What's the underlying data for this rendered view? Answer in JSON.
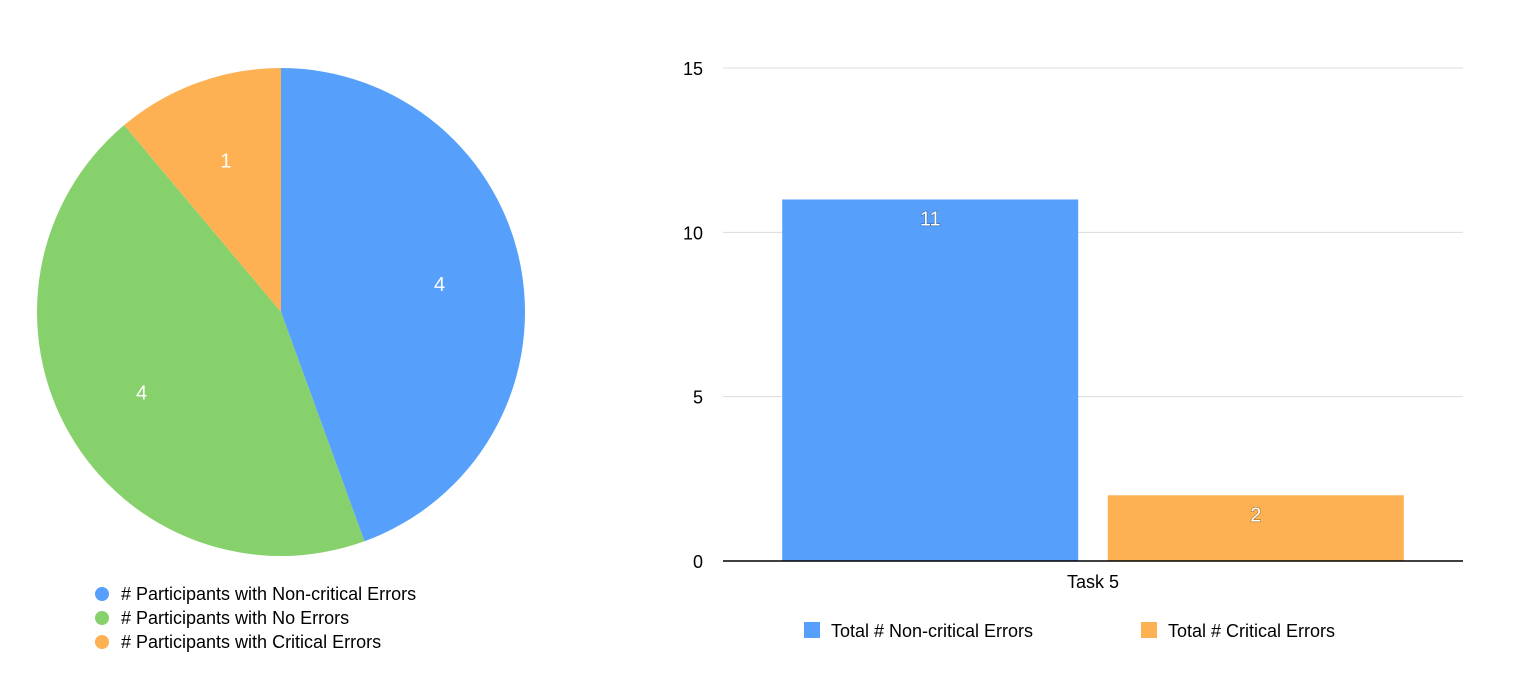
{
  "chart_data": [
    {
      "type": "pie",
      "title": "",
      "labels": [
        "# Participants with Non-critical Errors",
        "# Participants with No Errors",
        "# Participants with Critical Errors"
      ],
      "values": [
        4,
        4,
        1
      ],
      "data_labels": [
        "4",
        "4",
        "1"
      ],
      "colors": [
        "#56A0FB",
        "#86D16C",
        "#FDB153"
      ],
      "legend_position": "bottom-left"
    },
    {
      "type": "bar",
      "title": "",
      "categories": [
        "Task 5"
      ],
      "series": [
        {
          "name": "Total # Non-critical Errors",
          "values": [
            11
          ],
          "color": "#56A0FB",
          "data_label": "11"
        },
        {
          "name": "Total # Critical Errors",
          "values": [
            2
          ],
          "color": "#FDB153",
          "data_label": "2"
        }
      ],
      "xlabel": "",
      "ylabel": "",
      "ylim": [
        0,
        15
      ],
      "yticks": [
        "0",
        "5",
        "10",
        "15"
      ],
      "grid": true,
      "legend_position": "bottom"
    }
  ]
}
